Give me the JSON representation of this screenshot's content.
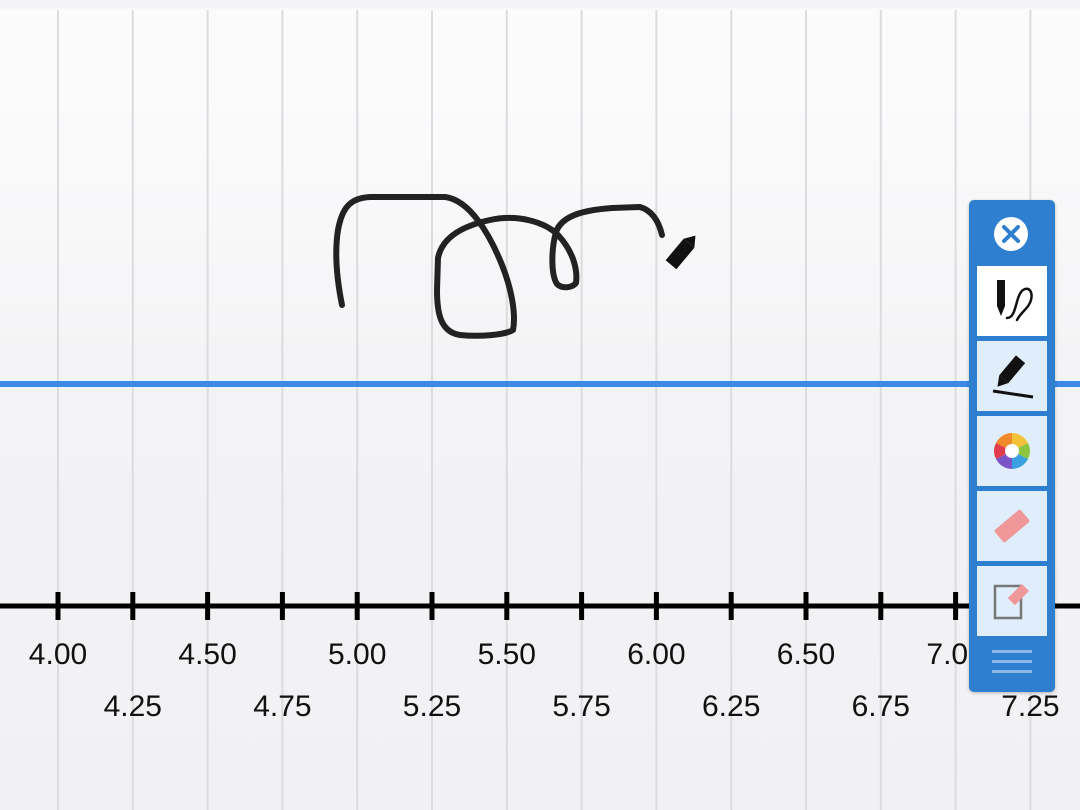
{
  "number_line": {
    "labels_top": [
      "4.00",
      "4.50",
      "5.00",
      "5.50",
      "6.00",
      "6.50",
      "7.00"
    ],
    "labels_bottom": [
      "4.25",
      "4.75",
      "5.25",
      "5.75",
      "6.25",
      "6.75",
      "7.25"
    ],
    "colors": {
      "axis": "#000000",
      "grid": "#dcdcde",
      "highlight_line": "#3b8ae6",
      "ink": "#222222"
    }
  },
  "toolbar": {
    "tools": [
      {
        "name": "close",
        "icon": "close-circle-icon"
      },
      {
        "name": "draw",
        "icon": "pen-scribble-icon",
        "active": true
      },
      {
        "name": "highlight",
        "icon": "highlighter-icon"
      },
      {
        "name": "color",
        "icon": "color-wheel-icon"
      },
      {
        "name": "erase",
        "icon": "eraser-icon"
      },
      {
        "name": "clear",
        "icon": "clear-page-icon"
      },
      {
        "name": "move",
        "icon": "drag-handle-icon"
      }
    ],
    "colors": {
      "panel": "#2f7fd0",
      "button": "#dfeefa",
      "active_button": "#ffffff"
    }
  }
}
